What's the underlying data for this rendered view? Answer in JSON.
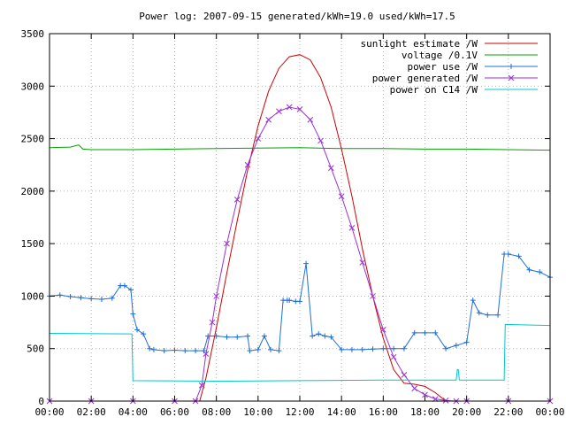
{
  "chart_data": {
    "type": "line",
    "title": "Power log: 2007-09-15 generated/kWh=19.0 used/kWh=17.5",
    "xlabel": "",
    "ylabel": "",
    "x_unit": "hours",
    "xlim": [
      0,
      24
    ],
    "ylim": [
      0,
      3500
    ],
    "x_ticks": [
      0,
      2,
      4,
      6,
      8,
      10,
      12,
      14,
      16,
      18,
      20,
      22,
      24
    ],
    "x_tick_labels": [
      "00:00",
      "02:00",
      "04:00",
      "06:00",
      "08:00",
      "10:00",
      "12:00",
      "14:00",
      "16:00",
      "18:00",
      "20:00",
      "22:00",
      "00:00"
    ],
    "y_ticks": [
      0,
      500,
      1000,
      1500,
      2000,
      2500,
      3000,
      3500
    ],
    "y_tick_labels": [
      "0",
      "500",
      "1000",
      "1500",
      "2000",
      "2500",
      "3000",
      "3500"
    ],
    "grid": true,
    "legend_position": "top-right",
    "series": [
      {
        "name": "sunlight estimate /W",
        "color": "#cc0000",
        "marker": "none",
        "x": [
          7.2,
          7.5,
          8.0,
          8.5,
          9.0,
          9.5,
          10.0,
          10.5,
          11.0,
          11.5,
          12.0,
          12.5,
          13.0,
          13.5,
          14.0,
          14.5,
          15.0,
          15.5,
          16.0,
          16.5,
          17.0,
          17.5,
          18.0,
          18.5,
          19.0
        ],
        "y": [
          0,
          220,
          700,
          1220,
          1720,
          2200,
          2620,
          2950,
          3170,
          3280,
          3300,
          3250,
          3080,
          2800,
          2400,
          1950,
          1450,
          1000,
          600,
          300,
          170,
          160,
          140,
          80,
          0
        ]
      },
      {
        "name": "voltage /0.1V",
        "color": "#00a000",
        "marker": "none",
        "x": [
          0,
          1.0,
          1.4,
          1.6,
          2,
          4,
          6,
          8,
          10,
          12,
          14,
          16,
          18,
          20,
          22,
          24
        ],
        "y": [
          2415,
          2420,
          2440,
          2400,
          2395,
          2395,
          2400,
          2405,
          2410,
          2415,
          2405,
          2405,
          2400,
          2400,
          2395,
          2390
        ]
      },
      {
        "name": "power use /W",
        "color": "#1e6fd6",
        "marker": "+",
        "x": [
          0,
          0.5,
          1.0,
          1.5,
          2.0,
          2.5,
          3.0,
          3.4,
          3.6,
          3.9,
          4.0,
          4.2,
          4.5,
          4.8,
          5.0,
          5.5,
          6.0,
          6.5,
          7.0,
          7.4,
          7.6,
          8.0,
          8.5,
          9.0,
          9.5,
          9.6,
          10.0,
          10.3,
          10.6,
          11.0,
          11.2,
          11.4,
          11.5,
          11.8,
          12.0,
          12.3,
          12.6,
          12.9,
          13.2,
          13.5,
          14.0,
          14.5,
          15.0,
          15.5,
          16.0,
          16.5,
          17.0,
          17.5,
          18.0,
          18.5,
          19.0,
          19.5,
          20.0,
          20.3,
          20.6,
          21.0,
          21.5,
          21.8,
          22.0,
          22.5,
          23.0,
          23.5,
          24.0
        ],
        "y": [
          1000,
          1010,
          995,
          985,
          975,
          970,
          980,
          1100,
          1100,
          1060,
          830,
          680,
          640,
          500,
          490,
          480,
          485,
          480,
          480,
          480,
          620,
          620,
          610,
          610,
          620,
          480,
          490,
          620,
          490,
          480,
          960,
          960,
          960,
          950,
          950,
          1310,
          620,
          640,
          620,
          610,
          490,
          490,
          490,
          495,
          500,
          500,
          500,
          650,
          650,
          650,
          500,
          530,
          560,
          960,
          840,
          820,
          820,
          1400,
          1400,
          1380,
          1250,
          1230,
          1180
        ]
      },
      {
        "name": "power generated /W",
        "color": "#9b30d9",
        "marker": "x",
        "x": [
          0,
          2,
          4,
          6,
          7.0,
          7.3,
          7.5,
          7.8,
          8.0,
          8.5,
          9.0,
          9.5,
          10.0,
          10.5,
          11.0,
          11.5,
          12.0,
          12.5,
          13.0,
          13.5,
          14.0,
          14.5,
          15.0,
          15.5,
          16.0,
          16.5,
          17.0,
          17.5,
          18.0,
          18.5,
          19.0,
          19.5,
          20.0,
          22.0,
          24.0
        ],
        "y": [
          0,
          0,
          0,
          0,
          0,
          150,
          450,
          750,
          1000,
          1500,
          1920,
          2250,
          2500,
          2680,
          2760,
          2800,
          2780,
          2680,
          2480,
          2220,
          1950,
          1650,
          1320,
          1000,
          680,
          420,
          250,
          120,
          60,
          20,
          5,
          0,
          0,
          0,
          0
        ]
      },
      {
        "name": "power on C14 /W",
        "color": "#00c8c8",
        "marker": "none",
        "x": [
          0,
          3.95,
          4.0,
          8.0,
          12.0,
          16.0,
          19.5,
          19.55,
          19.6,
          19.65,
          20.0,
          21.0,
          21.8,
          21.85,
          24.0
        ],
        "y": [
          645,
          640,
          195,
          190,
          195,
          200,
          200,
          300,
          300,
          200,
          200,
          200,
          200,
          730,
          720
        ]
      }
    ]
  }
}
